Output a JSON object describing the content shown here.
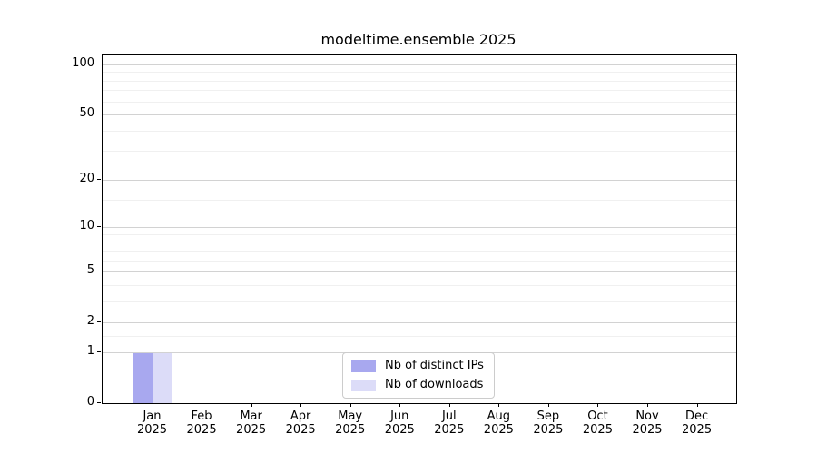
{
  "chart_data": {
    "type": "bar",
    "title": "modeltime.ensemble 2025",
    "categories": [
      "Jan 2025",
      "Feb 2025",
      "Mar 2025",
      "Apr 2025",
      "May 2025",
      "Jun 2025",
      "Jul 2025",
      "Aug 2025",
      "Sep 2025",
      "Oct 2025",
      "Nov 2025",
      "Dec 2025"
    ],
    "series": [
      {
        "name": "Nb of distinct IPs",
        "color": "#a8a8ef",
        "values": [
          1,
          0,
          0,
          0,
          0,
          0,
          0,
          0,
          0,
          0,
          0,
          0
        ]
      },
      {
        "name": "Nb of downloads",
        "color": "#dcdcf8",
        "values": [
          1,
          0,
          0,
          0,
          0,
          0,
          0,
          0,
          0,
          0,
          0,
          0
        ]
      }
    ],
    "y_axis": {
      "scale": "log1p",
      "ticks": [
        0,
        1,
        2,
        5,
        10,
        20,
        50,
        100
      ],
      "minor_gridlines": [
        1.5,
        3,
        4,
        6,
        7,
        8,
        9,
        15,
        30,
        40,
        60,
        70,
        80,
        90
      ],
      "range": [
        0,
        113
      ]
    },
    "xlabel": "",
    "ylabel": "",
    "grid": "horizontal",
    "legend": {
      "position": "lower-center"
    },
    "colors": {
      "major_grid": "#d2d2d2",
      "minor_grid": "#f0f0f0",
      "spine": "#000000",
      "text": "#000000",
      "background": "#ffffff"
    }
  }
}
